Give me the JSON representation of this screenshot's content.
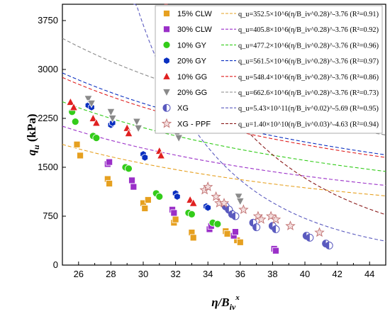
{
  "chart_data": {
    "type": "scatter",
    "xlabel": "η/B",
    "xlabel_sub": "iv",
    "xlabel_sup": "x",
    "ylabel": "q",
    "ylabel_sub": "u",
    "ylabel_unit": " (kPa)",
    "xlim": [
      25,
      45
    ],
    "ylim": [
      0,
      4000
    ],
    "x_ticks": [
      "26",
      "28",
      "30",
      "32",
      "34",
      "36",
      "38",
      "40",
      "42",
      "44"
    ],
    "y_ticks": [
      "0",
      "750",
      "1500",
      "2250",
      "3000",
      "3750"
    ],
    "grid": false,
    "legend_position": "top-right",
    "series": [
      {
        "name": "15% CLW",
        "color": "#e6a020",
        "marker": "square",
        "equation": "q_u=352.5×10^6(η/B_iv^0.28)^-3.76 (R²=0.91)",
        "points": [
          [
            25.9,
            1850
          ],
          [
            26.1,
            1680
          ],
          [
            27.8,
            1320
          ],
          [
            27.9,
            1250
          ],
          [
            30.0,
            950
          ],
          [
            30.1,
            870
          ],
          [
            30.3,
            1000
          ],
          [
            31.9,
            650
          ],
          [
            32.0,
            700
          ],
          [
            33.0,
            500
          ],
          [
            33.1,
            420
          ],
          [
            35.1,
            520
          ],
          [
            35.2,
            480
          ],
          [
            35.8,
            380
          ],
          [
            36.0,
            350
          ]
        ]
      },
      {
        "name": "30% CLW",
        "color": "#9a2fc8",
        "marker": "square",
        "equation": "q_u=405.8×10^6(η/B_iv^0.28)^-3.76 (R²=0.92)",
        "points": [
          [
            27.8,
            1550
          ],
          [
            27.9,
            1580
          ],
          [
            29.3,
            1300
          ],
          [
            29.4,
            1200
          ],
          [
            31.8,
            850
          ],
          [
            31.9,
            800
          ],
          [
            34.1,
            550
          ],
          [
            34.2,
            600
          ],
          [
            35.6,
            450
          ],
          [
            35.7,
            510
          ],
          [
            38.1,
            250
          ],
          [
            38.2,
            220
          ]
        ]
      },
      {
        "name": "10% GY",
        "color": "#33cc1a",
        "marker": "circle",
        "equation": "q_u=477.2×10^6(η/B_iv^0.28)^-3.76 (R²=0.96)",
        "points": [
          [
            25.6,
            2350
          ],
          [
            25.8,
            2200
          ],
          [
            26.9,
            1980
          ],
          [
            27.1,
            1950
          ],
          [
            28.9,
            1500
          ],
          [
            29.1,
            1480
          ],
          [
            30.8,
            1100
          ],
          [
            31.0,
            1050
          ],
          [
            32.8,
            800
          ],
          [
            33.0,
            780
          ],
          [
            34.3,
            650
          ],
          [
            34.6,
            630
          ]
        ]
      },
      {
        "name": "20% GY",
        "color": "#0a2fc0",
        "marker": "hexagon",
        "equation": "q_u=561.5×10^6(η/B_iv^0.28)^-3.76 (R²=0.97)",
        "points": [
          [
            26.6,
            2450
          ],
          [
            26.8,
            2420
          ],
          [
            28.0,
            2150
          ],
          [
            28.1,
            2180
          ],
          [
            30.0,
            1700
          ],
          [
            30.1,
            1650
          ],
          [
            32.0,
            1100
          ],
          [
            32.1,
            1050
          ],
          [
            33.9,
            900
          ],
          [
            34.0,
            880
          ],
          [
            35.3,
            850
          ],
          [
            35.4,
            820
          ]
        ]
      },
      {
        "name": "10% GG",
        "color": "#e02020",
        "marker": "triangle",
        "equation": "q_u=548.4×10^6(η/B_iv^0.28)^-3.76 (R²=0.86)",
        "points": [
          [
            25.5,
            2500
          ],
          [
            25.7,
            2420
          ],
          [
            26.9,
            2250
          ],
          [
            27.1,
            2180
          ],
          [
            29.0,
            2100
          ],
          [
            29.1,
            2020
          ],
          [
            31.0,
            1750
          ],
          [
            31.1,
            1680
          ],
          [
            32.9,
            1000
          ],
          [
            33.1,
            950
          ]
        ]
      },
      {
        "name": "20% GG",
        "color": "#8a8a8a",
        "marker": "triangle-down",
        "equation": "q_u=662.6×10^6(η/B_iv^0.28)^-3.76 (R²=0.73)",
        "points": [
          [
            26.6,
            2550
          ],
          [
            26.8,
            2480
          ],
          [
            28.0,
            2350
          ],
          [
            28.1,
            2250
          ],
          [
            29.6,
            2200
          ],
          [
            29.7,
            2100
          ],
          [
            32.1,
            2000
          ],
          [
            32.2,
            1950
          ],
          [
            35.9,
            1050
          ],
          [
            36.0,
            980
          ]
        ]
      },
      {
        "name": "XG",
        "color": "#5a5abf",
        "marker": "half-circle",
        "equation": "q_u=5.43×10^11(η/B_iv^0.02)^-5.69 (R²=0.95)",
        "points": [
          [
            35.1,
            900
          ],
          [
            35.3,
            850
          ],
          [
            35.5,
            780
          ],
          [
            35.7,
            750
          ],
          [
            36.8,
            650
          ],
          [
            37.0,
            580
          ],
          [
            38.0,
            600
          ],
          [
            38.2,
            550
          ],
          [
            40.1,
            450
          ],
          [
            40.3,
            420
          ],
          [
            41.3,
            330
          ],
          [
            41.5,
            300
          ]
        ]
      },
      {
        "name": "XG - PPF",
        "color": "#c07070",
        "marker": "star",
        "equation": "q_u=1.40×10^10(η/B_iv^0.03)^-4.63 (R²=0.94)",
        "points": [
          [
            33.8,
            1150
          ],
          [
            34.0,
            1200
          ],
          [
            34.5,
            1050
          ],
          [
            34.7,
            950
          ],
          [
            35.0,
            950
          ],
          [
            36.2,
            850
          ],
          [
            37.1,
            750
          ],
          [
            37.3,
            700
          ],
          [
            37.9,
            750
          ],
          [
            38.2,
            700
          ],
          [
            39.1,
            600
          ],
          [
            40.9,
            500
          ]
        ]
      }
    ],
    "fits": [
      {
        "series": "15% CLW",
        "model": "power",
        "a": 38850,
        "b": -0.9458,
        "color": "#e6a020"
      },
      {
        "series": "30% CLW",
        "model": "power",
        "a": 44720,
        "b": -0.9458,
        "color": "#9a2fc8"
      },
      {
        "series": "10% GY",
        "model": "power",
        "a": 52590,
        "b": -0.9458,
        "color": "#33cc1a"
      },
      {
        "series": "20% GY",
        "model": "power",
        "a": 61880,
        "b": -0.9458,
        "color": "#0a2fc0"
      },
      {
        "series": "10% GG",
        "model": "power",
        "a": 60430,
        "b": -0.9458,
        "color": "#e02020"
      },
      {
        "series": "20% GG",
        "model": "power",
        "a": 73020,
        "b": -0.9458,
        "color": "#8a8a8a"
      },
      {
        "series": "XG",
        "model": "power",
        "a": 935500000000.0,
        "b": -5.69,
        "color": "#5a5abf"
      },
      {
        "series": "XG - PPF",
        "model": "power",
        "a": 34900000000.0,
        "b": -4.63,
        "color": "#8a1a1a"
      }
    ]
  }
}
